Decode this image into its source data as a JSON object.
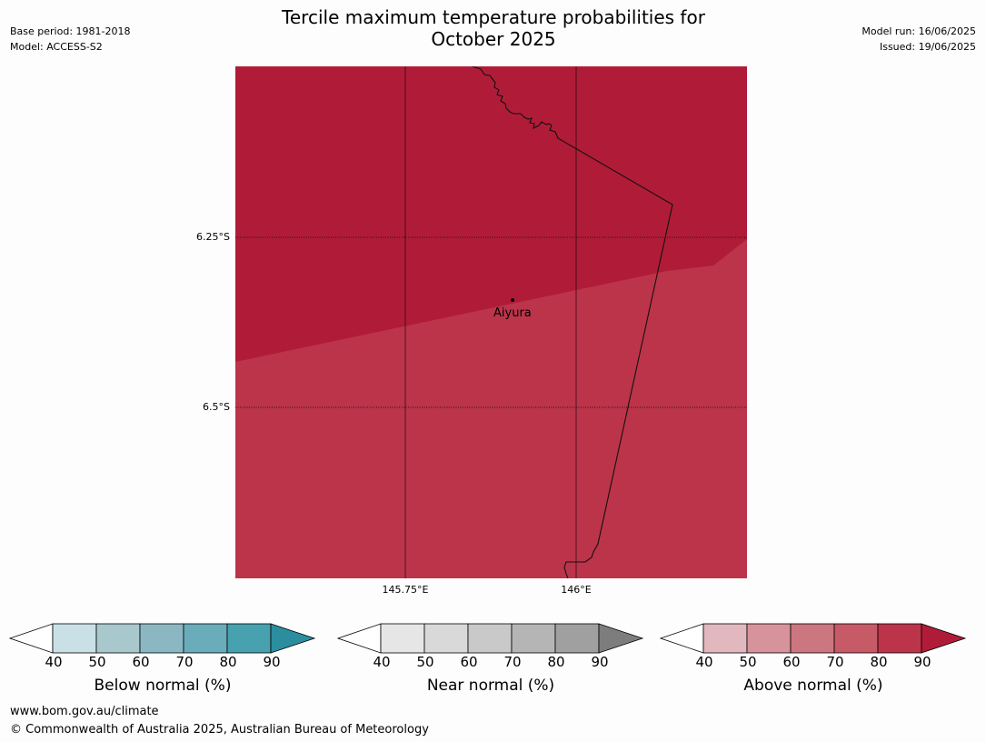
{
  "header": {
    "title_line1": "Tercile maximum temperature probabilities for",
    "title_line2": "October 2025",
    "base_period": "Base period: 1981-2018",
    "model": "Model: ACCESS-S2",
    "model_run": "Model run: 16/06/2025",
    "issued": "Issued: 19/06/2025"
  },
  "map": {
    "lat_labels": [
      "6.25°S",
      "6.5°S"
    ],
    "lon_labels": [
      "145.75°E",
      "146°E"
    ],
    "place_label": "Aiyura",
    "region_colors": {
      "above_80_90": "#b01c38",
      "above_70_80": "#bc344a"
    }
  },
  "legend": {
    "below": {
      "label": "Below normal (%)",
      "ticks": [
        "40",
        "50",
        "60",
        "70",
        "80",
        "90"
      ],
      "colors": [
        "#ffffff",
        "#c9e1e6",
        "#a8c8cd",
        "#8ab7c2",
        "#6aacba",
        "#47a1ae",
        "#2b8e9f"
      ]
    },
    "near": {
      "label": "Near normal (%)",
      "ticks": [
        "40",
        "50",
        "60",
        "70",
        "80",
        "90"
      ],
      "colors": [
        "#ffffff",
        "#e6e6e6",
        "#d9d9d9",
        "#c9c9c9",
        "#b5b5b5",
        "#a0a0a0",
        "#7d7d7d"
      ]
    },
    "above": {
      "label": "Above normal (%)",
      "ticks": [
        "40",
        "50",
        "60",
        "70",
        "80",
        "90"
      ],
      "colors": [
        "#ffffff",
        "#e1b8bd",
        "#d6939b",
        "#cc767f",
        "#c65a67",
        "#bc344a",
        "#b01c38"
      ]
    }
  },
  "footer": {
    "url": "www.bom.gov.au/climate",
    "copyright": "© Commonwealth of Australia 2025, Australian Bureau of Meteorology"
  }
}
